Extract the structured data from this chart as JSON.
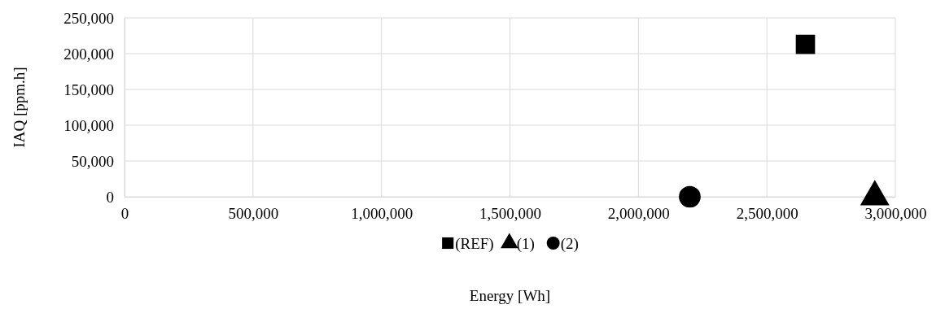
{
  "chart_data": {
    "type": "scatter",
    "xlabel": "Energy [Wh]",
    "ylabel": "IAQ [ppm.h]",
    "xlim": [
      0,
      3000000
    ],
    "xticks": [
      {
        "value": 0,
        "label": "0"
      },
      {
        "value": 500000,
        "label": "500,000"
      },
      {
        "value": 1000000,
        "label": "1,000,000"
      },
      {
        "value": 1500000,
        "label": "1,500,000"
      },
      {
        "value": 2000000,
        "label": "2,000,000"
      },
      {
        "value": 2500000,
        "label": "2,500,000"
      },
      {
        "value": 3000000,
        "label": "3,000,000"
      }
    ],
    "ylim": [
      0,
      250000
    ],
    "yticks": [
      {
        "value": 0,
        "label": "0"
      },
      {
        "value": 50000,
        "label": "50,000"
      },
      {
        "value": 100000,
        "label": "100,000"
      },
      {
        "value": 150000,
        "label": "150,000"
      },
      {
        "value": 200000,
        "label": "200,000"
      },
      {
        "value": 250000,
        "label": "250,000"
      }
    ],
    "grid": true,
    "legend": "bottom",
    "series": [
      {
        "name": "(REF)",
        "color": "#000000",
        "marker": "square",
        "x": [
          2650000
        ],
        "values": [
          213000
        ]
      },
      {
        "name": "(1)",
        "color": "#000000",
        "marker": "triangle",
        "x": [
          2920000
        ],
        "values": [
          0
        ]
      },
      {
        "name": "(2)",
        "color": "#000000",
        "marker": "circle",
        "x": [
          2200000
        ],
        "values": [
          0
        ]
      }
    ]
  }
}
